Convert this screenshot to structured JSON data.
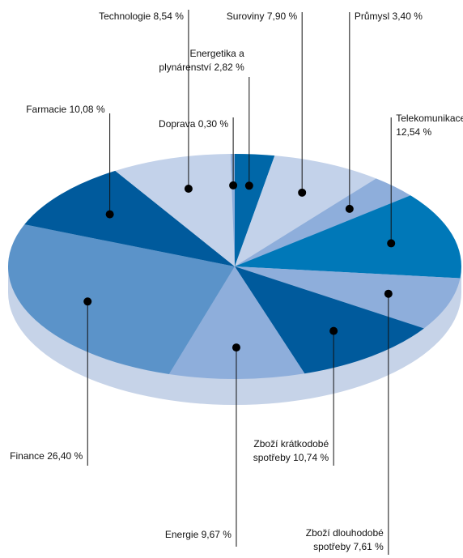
{
  "chart_data": {
    "type": "pie",
    "categories": [
      "Energetika a plynárenství",
      "Suroviny",
      "Průmysl",
      "Telekomunikace",
      "Zboží dlouhodobé spotřeby",
      "Zboží krátkodobé spotřeby",
      "Energie",
      "Finance",
      "Farmacie",
      "Technologie",
      "Doprava"
    ],
    "values": [
      2.82,
      7.9,
      3.4,
      12.54,
      7.61,
      10.74,
      9.67,
      26.4,
      10.08,
      8.54,
      0.3
    ],
    "value_labels": [
      "2,82 %",
      "7,90 %",
      "3,40 %",
      "12,54 %",
      "7,61 %",
      "10,74 %",
      "9,67 %",
      "26,40 %",
      "10,08 %",
      "8,54 %",
      "0,30 %"
    ],
    "colors": [
      "#0067a8",
      "#c3d2ea",
      "#8eaedb",
      "#0078b8",
      "#8eaedb",
      "#005a9c",
      "#8eaedb",
      "#5b93c9",
      "#005a9c",
      "#c3d2ea",
      "#8eaedb"
    ]
  }
}
